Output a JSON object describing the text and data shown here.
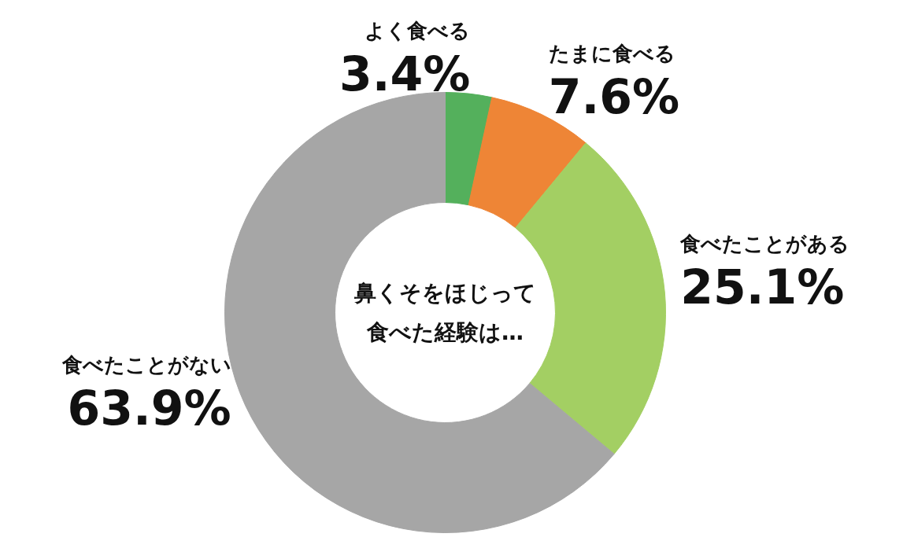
{
  "chart_data": {
    "type": "donut",
    "title": "鼻くそをほじって食べた経験は…",
    "categories": [
      "よく食べる",
      "たまに食べる",
      "食べたことがある",
      "食べたことがない"
    ],
    "values": [
      3.4,
      7.6,
      25.1,
      63.9
    ],
    "colors": [
      "#54b05c",
      "#ee8536",
      "#a3cf63",
      "#a6a6a6"
    ],
    "value_labels": [
      "3.4%",
      "7.6%",
      "25.1%",
      "63.9%"
    ]
  }
}
